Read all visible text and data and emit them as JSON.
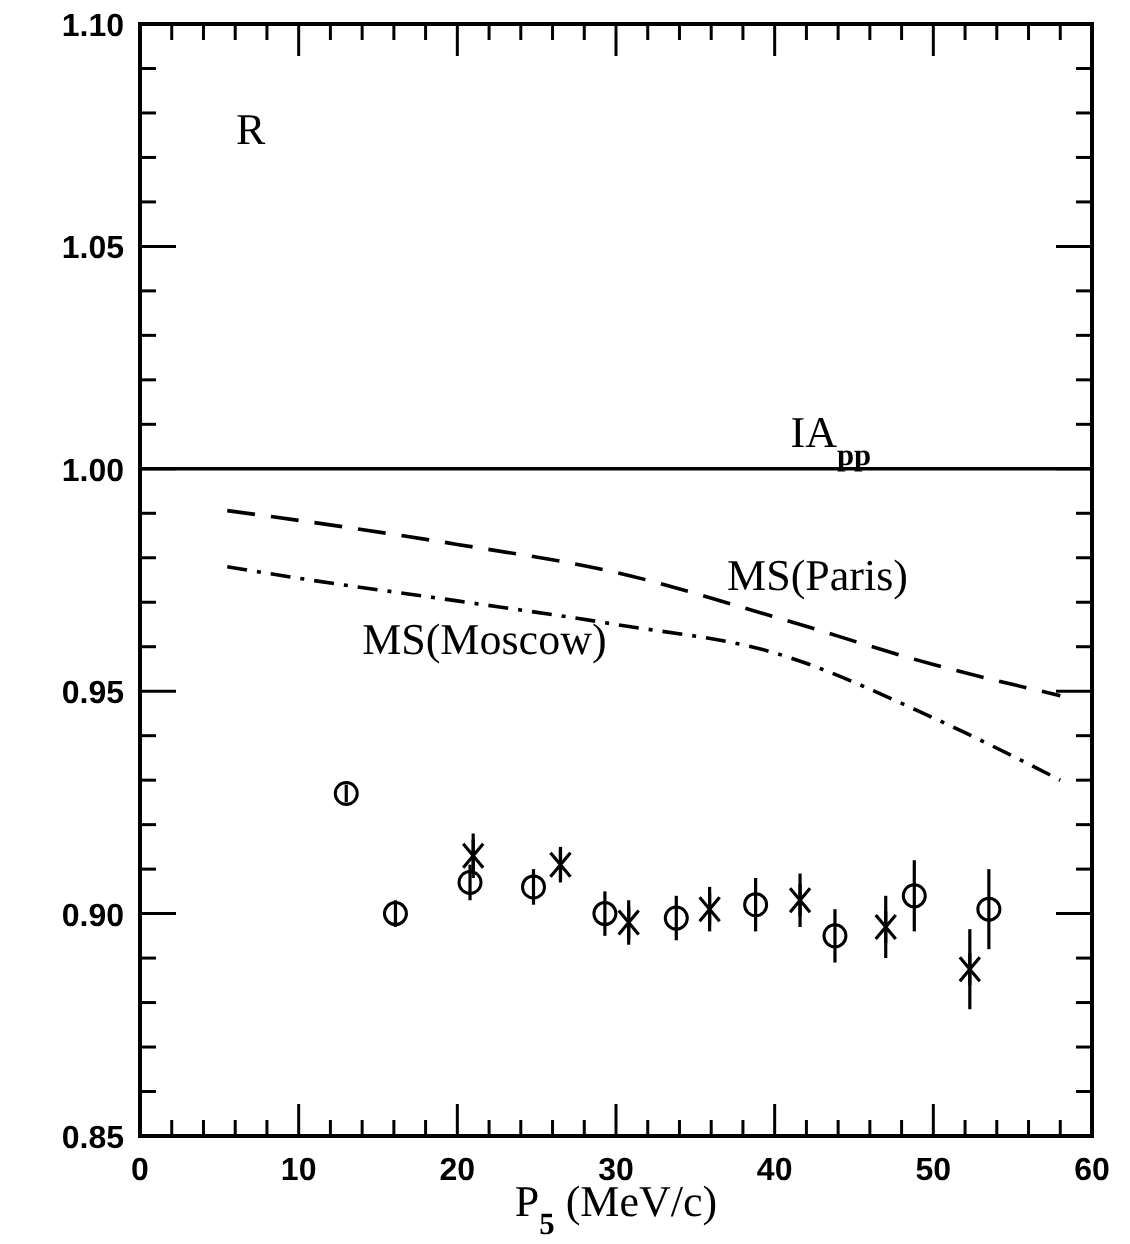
{
  "chart_data": {
    "type": "scatter",
    "xlabel": "P$_{5}$ (MeV/c)",
    "annotations": [
      "R"
    ],
    "xlim": [
      0,
      60
    ],
    "ylim": [
      0.85,
      1.1
    ],
    "xticks": [
      0,
      {
        "value": 2,
        "label": null
      },
      {
        "value": 4,
        "label": null
      },
      {
        "value": 6,
        "label": null
      },
      {
        "value": 8,
        "label": null
      },
      10,
      {
        "value": 12,
        "label": null
      },
      {
        "value": 14,
        "label": null
      },
      {
        "value": 16,
        "label": null
      },
      {
        "value": 18,
        "label": null
      },
      20,
      {
        "value": 22,
        "label": null
      },
      {
        "value": 24,
        "label": null
      },
      {
        "value": 26,
        "label": null
      },
      {
        "value": 28,
        "label": null
      },
      30,
      {
        "value": 32,
        "label": null
      },
      {
        "value": 34,
        "label": null
      },
      {
        "value": 36,
        "label": null
      },
      {
        "value": 38,
        "label": null
      },
      40,
      {
        "value": 42,
        "label": null
      },
      {
        "value": 44,
        "label": null
      },
      {
        "value": 46,
        "label": null
      },
      {
        "value": 48,
        "label": null
      },
      50,
      {
        "value": 52,
        "label": null
      },
      {
        "value": 54,
        "label": null
      },
      {
        "value": 56,
        "label": null
      },
      {
        "value": 58,
        "label": null
      },
      60
    ],
    "yticks": [
      {
        "value": 0.85,
        "label": "0.85"
      },
      {
        "value": 0.86,
        "label": null
      },
      {
        "value": 0.87,
        "label": null
      },
      {
        "value": 0.88,
        "label": null
      },
      {
        "value": 0.89,
        "label": null
      },
      {
        "value": 0.9,
        "label": "0.90"
      },
      {
        "value": 0.91,
        "label": null
      },
      {
        "value": 0.92,
        "label": null
      },
      {
        "value": 0.93,
        "label": null
      },
      {
        "value": 0.94,
        "label": null
      },
      {
        "value": 0.95,
        "label": "0.95"
      },
      {
        "value": 0.96,
        "label": null
      },
      {
        "value": 0.97,
        "label": null
      },
      {
        "value": 0.98,
        "label": null
      },
      {
        "value": 0.99,
        "label": null
      },
      {
        "value": 1.0,
        "label": "1.00"
      },
      {
        "value": 1.01,
        "label": null
      },
      {
        "value": 1.02,
        "label": null
      },
      {
        "value": 1.03,
        "label": null
      },
      {
        "value": 1.04,
        "label": null
      },
      {
        "value": 1.05,
        "label": "1.05"
      },
      {
        "value": 1.06,
        "label": null
      },
      {
        "value": 1.07,
        "label": null
      },
      {
        "value": 1.08,
        "label": null
      },
      {
        "value": 1.09,
        "label": null
      },
      {
        "value": 1.1,
        "label": "1.10"
      }
    ],
    "grid": false,
    "legend": false,
    "series": [
      {
        "type": "line",
        "name": "IA$_{pp}$",
        "color": "#000000",
        "line_style": "solid",
        "x": [
          0,
          60
        ],
        "values": [
          1.0,
          1.0
        ]
      },
      {
        "type": "line",
        "name": "MS(Paris)",
        "color": "#000000",
        "line_style": "dashed",
        "x": [
          5.5,
          10,
          20,
          30,
          40,
          50,
          58
        ],
        "values": [
          0.9906,
          0.9884,
          0.983,
          0.9767,
          0.9667,
          0.956,
          0.949
        ]
      },
      {
        "type": "line",
        "name": "MS(Moscow)",
        "color": "#000000",
        "line_style": "dashdot",
        "x": [
          5.5,
          10,
          20,
          30,
          40,
          50,
          58
        ],
        "values": [
          0.978,
          0.9754,
          0.9703,
          0.965,
          0.9586,
          0.944,
          0.93
        ]
      },
      {
        "color": "#000000",
        "marker": "circle",
        "x": [
          13.0,
          16.1,
          20.8,
          24.8,
          29.3,
          33.8,
          38.8,
          43.8,
          48.8,
          53.5
        ],
        "values": [
          0.927,
          0.9,
          0.907,
          0.906,
          0.9,
          0.899,
          0.902,
          0.895,
          0.904,
          0.901
        ],
        "errors": [
          0.002,
          0.003,
          0.004,
          0.004,
          0.005,
          0.005,
          0.006,
          0.006,
          0.008,
          0.009
        ]
      },
      {
        "color": "#000000",
        "marker": "cross",
        "x": [
          21.0,
          26.5,
          30.8,
          35.9,
          41.6,
          47.0,
          52.3
        ],
        "values": [
          0.913,
          0.911,
          0.898,
          0.901,
          0.903,
          0.897,
          0.8875
        ],
        "errors": [
          0.005,
          0.004,
          0.005,
          0.005,
          0.006,
          0.007,
          0.009
        ]
      }
    ]
  }
}
